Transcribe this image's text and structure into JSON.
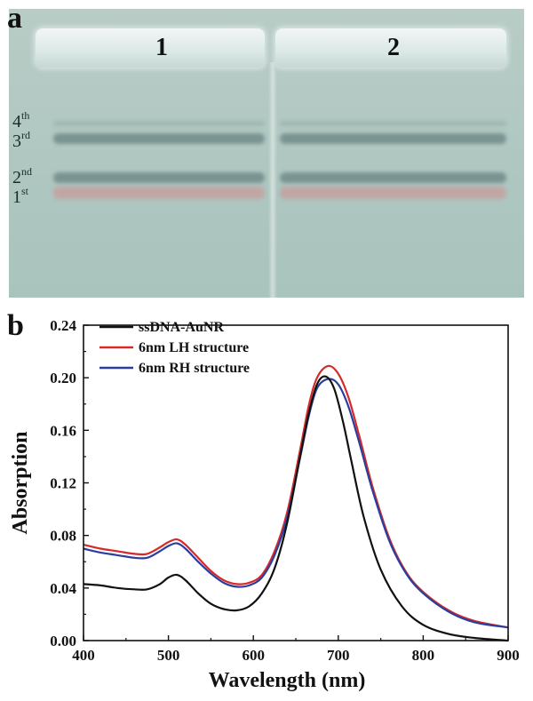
{
  "panel_a": {
    "letter": "a",
    "lanes": [
      {
        "label": "1"
      },
      {
        "label": "2"
      }
    ],
    "band_labels": [
      {
        "base": "4",
        "sup": "th"
      },
      {
        "base": "3",
        "sup": "rd"
      },
      {
        "base": "2",
        "sup": "nd"
      },
      {
        "base": "1",
        "sup": "st"
      }
    ],
    "colors": {
      "gel": "#b2c8c2",
      "band_dark": "#4d6a6c",
      "band_red": "#c89a98"
    }
  },
  "panel_b": {
    "letter": "b"
  },
  "chart_data": {
    "type": "line",
    "xlabel": "Wavelength (nm)",
    "ylabel": "Absorption",
    "xlim": [
      400,
      900
    ],
    "ylim": [
      0,
      0.24
    ],
    "xticks": [
      400,
      500,
      600,
      700,
      800,
      900
    ],
    "yticks": [
      "0.00",
      "0.04",
      "0.08",
      "0.12",
      "0.16",
      "0.20",
      "0.24"
    ],
    "legend_position": "top-left",
    "series": [
      {
        "name": "ssDNA-AuNR",
        "color": "#111111",
        "x": [
          400,
          420,
          440,
          460,
          475,
          490,
          500,
          510,
          520,
          535,
          550,
          565,
          580,
          595,
          610,
          625,
          640,
          655,
          665,
          675,
          685,
          695,
          705,
          715,
          730,
          750,
          775,
          800,
          830,
          860,
          900
        ],
        "y": [
          0.043,
          0.042,
          0.04,
          0.039,
          0.039,
          0.043,
          0.048,
          0.05,
          0.046,
          0.036,
          0.028,
          0.024,
          0.023,
          0.026,
          0.036,
          0.055,
          0.09,
          0.14,
          0.172,
          0.195,
          0.201,
          0.192,
          0.168,
          0.138,
          0.094,
          0.054,
          0.026,
          0.012,
          0.005,
          0.002,
          0.0
        ]
      },
      {
        "name": "6nm LH structure",
        "color": "#d42a2a",
        "x": [
          400,
          420,
          440,
          460,
          475,
          490,
          500,
          510,
          520,
          535,
          550,
          565,
          580,
          595,
          610,
          625,
          640,
          655,
          665,
          675,
          688,
          700,
          712,
          725,
          740,
          760,
          780,
          800,
          830,
          860,
          900
        ],
        "y": [
          0.073,
          0.07,
          0.068,
          0.066,
          0.066,
          0.071,
          0.075,
          0.077,
          0.073,
          0.063,
          0.053,
          0.046,
          0.043,
          0.044,
          0.05,
          0.068,
          0.098,
          0.145,
          0.178,
          0.2,
          0.209,
          0.203,
          0.185,
          0.155,
          0.118,
          0.078,
          0.052,
          0.037,
          0.023,
          0.015,
          0.01
        ]
      },
      {
        "name": "6nm RH structure",
        "color": "#2b3e9e",
        "x": [
          400,
          420,
          440,
          460,
          475,
          490,
          500,
          510,
          520,
          535,
          550,
          565,
          580,
          595,
          610,
          625,
          640,
          655,
          665,
          675,
          688,
          700,
          712,
          725,
          740,
          760,
          780,
          800,
          830,
          860,
          900
        ],
        "y": [
          0.07,
          0.067,
          0.065,
          0.063,
          0.063,
          0.068,
          0.072,
          0.074,
          0.07,
          0.06,
          0.051,
          0.044,
          0.041,
          0.042,
          0.048,
          0.065,
          0.094,
          0.139,
          0.17,
          0.192,
          0.199,
          0.195,
          0.178,
          0.15,
          0.115,
          0.076,
          0.051,
          0.036,
          0.022,
          0.014,
          0.01
        ]
      }
    ]
  }
}
